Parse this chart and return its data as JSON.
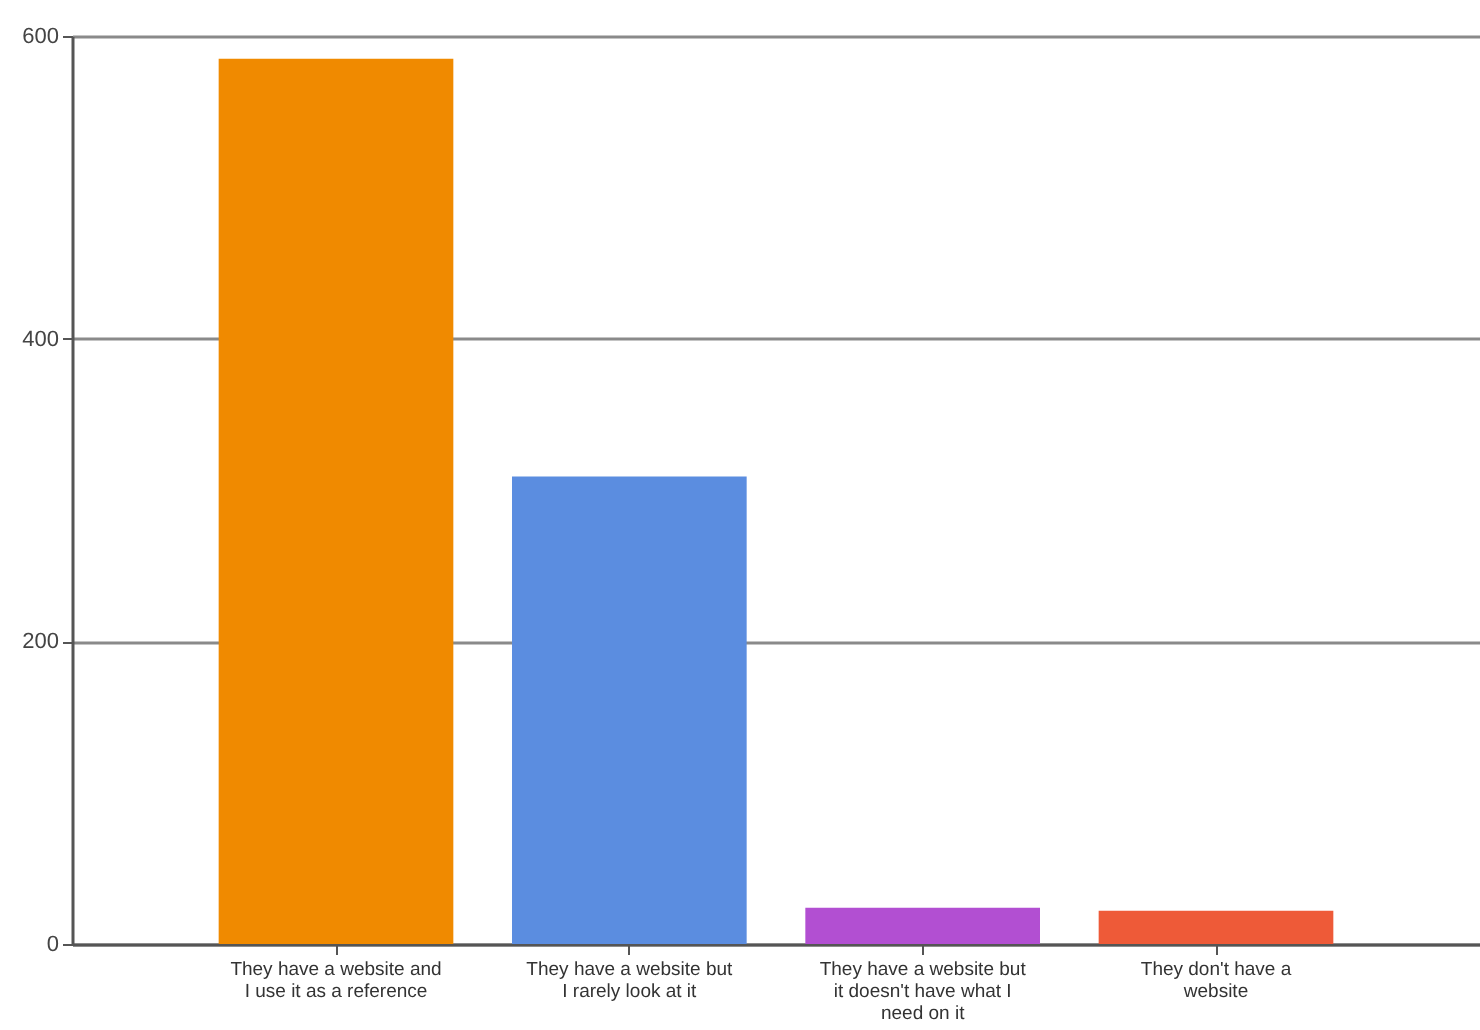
{
  "chart_data": {
    "type": "bar",
    "categories": [
      "They have a website and I use it as a reference",
      "They have a website but I rarely look at it",
      "They have a website but it doesn't have what I need on it",
      "They don't have a website"
    ],
    "values": [
      585,
      309,
      24,
      22
    ],
    "colors": [
      "#f08a00",
      "#5b8de0",
      "#b24fd2",
      "#ee5a38"
    ],
    "ylim": [
      0,
      600
    ],
    "yticks": [
      0,
      200,
      400,
      600
    ],
    "grid": "y"
  }
}
